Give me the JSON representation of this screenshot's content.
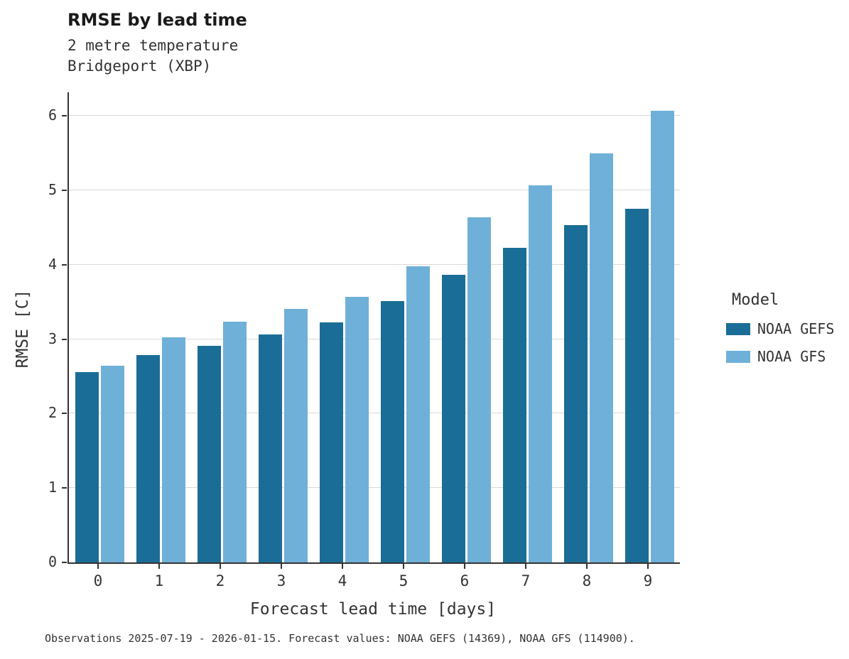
{
  "title": "RMSE by lead time",
  "subtitle_lines": [
    "2 metre temperature",
    "Bridgeport (XBP)"
  ],
  "caption": "Observations 2025-07-19 - 2026-01-15. Forecast values: NOAA GEFS (14369), NOAA GFS (114900).",
  "legend": {
    "title": "Model",
    "entries": [
      {
        "label": "NOAA GEFS",
        "color": "#1a6d96"
      },
      {
        "label": "NOAA GFS",
        "color": "#6fb0d8"
      }
    ]
  },
  "colors": {
    "gefs": "#1a6d96",
    "gfs": "#6fb0d8",
    "gridline": "#d9d9d9",
    "axis": "#333333"
  },
  "chart_data": {
    "type": "bar",
    "title": "RMSE by lead time",
    "subtitle": "2 metre temperature / Bridgeport (XBP)",
    "xlabel": "Forecast lead time [days]",
    "ylabel": "RMSE [C]",
    "categories": [
      "0",
      "1",
      "2",
      "3",
      "4",
      "5",
      "6",
      "7",
      "8",
      "9"
    ],
    "series": [
      {
        "name": "NOAA GEFS",
        "color": "#1a6d96",
        "values": [
          2.56,
          2.79,
          2.91,
          3.06,
          3.22,
          3.51,
          3.86,
          4.23,
          4.53,
          4.75
        ]
      },
      {
        "name": "NOAA GFS",
        "color": "#6fb0d8",
        "values": [
          2.64,
          3.02,
          3.23,
          3.41,
          3.57,
          3.98,
          4.64,
          5.07,
          5.49,
          6.07
        ]
      }
    ],
    "ylim": [
      0,
      6.3
    ],
    "yticks": [
      0,
      1,
      2,
      3,
      4,
      5,
      6
    ],
    "grid": "horizontal",
    "legend_position": "right",
    "legend_title": "Model"
  }
}
